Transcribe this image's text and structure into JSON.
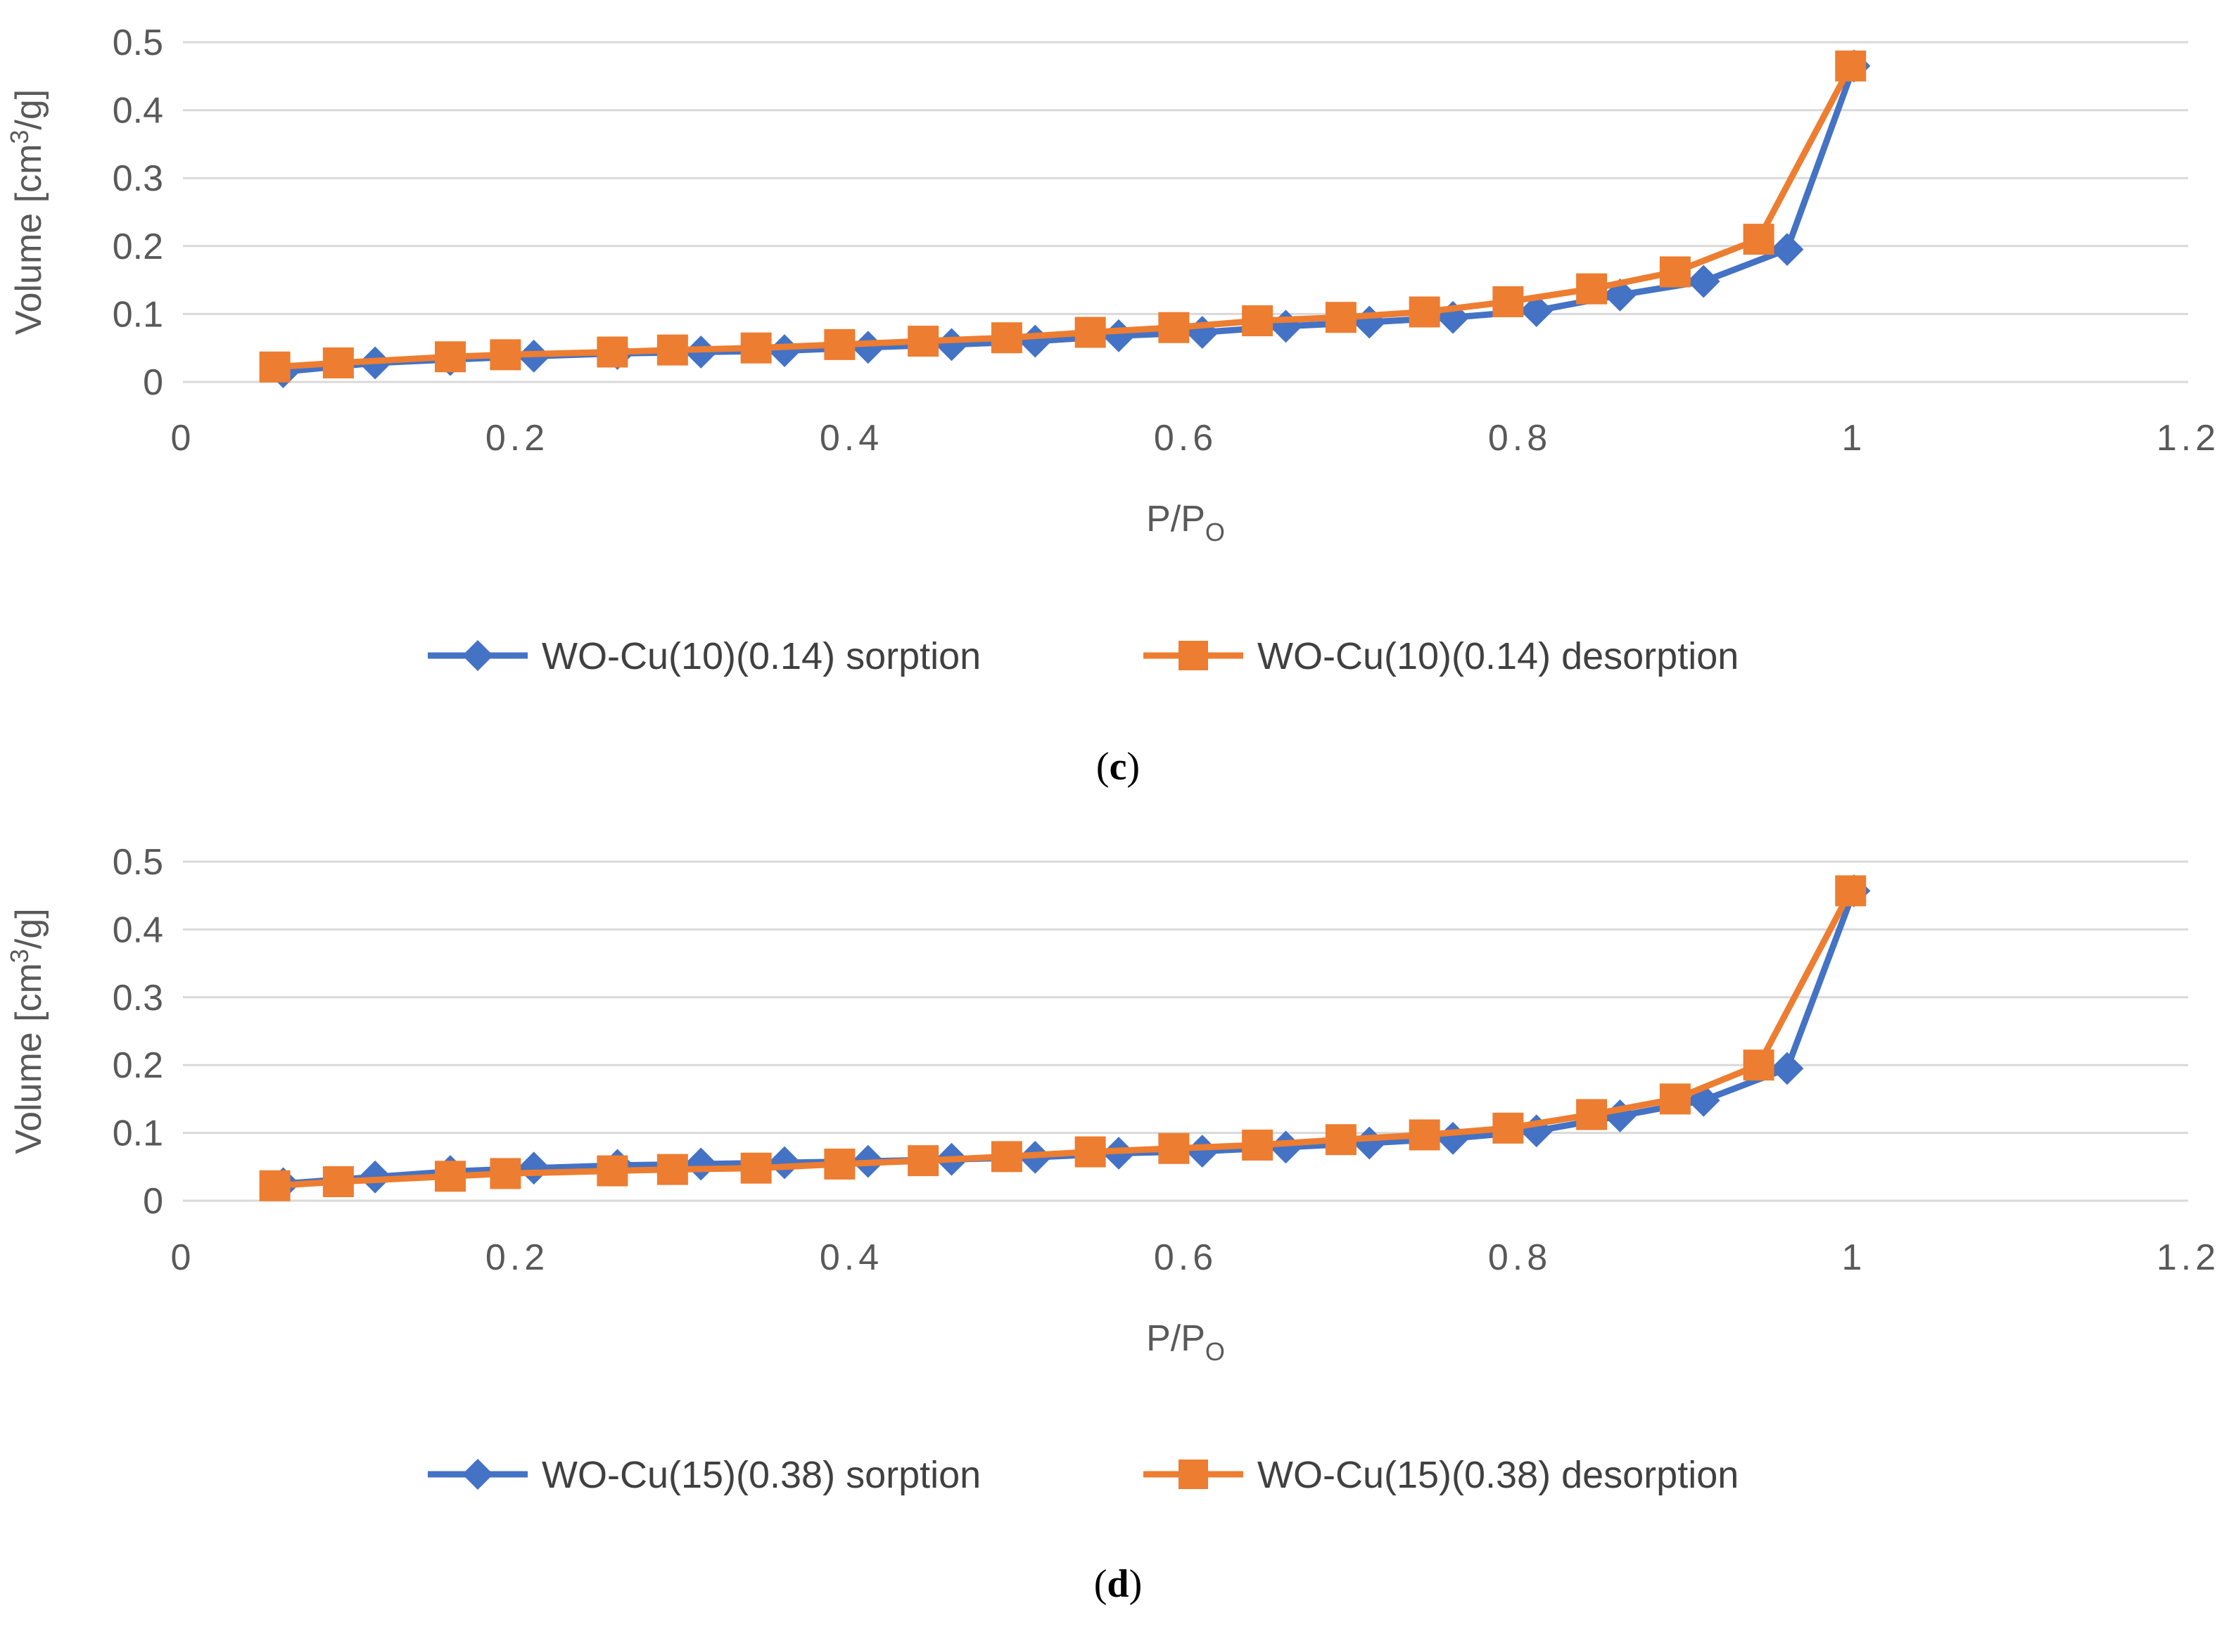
{
  "colors": {
    "sorption": "#4472C4",
    "desorption": "#ED7D31",
    "grid": "#D9D9D9",
    "text": "#595959"
  },
  "chart_data": [
    {
      "type": "line",
      "panel_label": "c",
      "xlabel": "P/P",
      "xlabel_sub": "O",
      "ylabel": "Volume [cm",
      "ylabel_sup": "3",
      "ylabel_end": "/g]",
      "xlim": [
        0,
        1.2
      ],
      "ylim": [
        0,
        0.5
      ],
      "xticks": [
        "0",
        "0.2",
        "0.4",
        "0.6",
        "0.8",
        "1",
        "1.2"
      ],
      "yticks": [
        "0",
        "0.1",
        "0.2",
        "0.3",
        "0.4",
        "0.5"
      ],
      "grid": "horizontal",
      "legend_position": "bottom",
      "series": [
        {
          "name": "WO-Cu(10)(0.14) sorption",
          "marker": "diamond",
          "x": [
            0.06,
            0.115,
            0.16,
            0.21,
            0.26,
            0.31,
            0.36,
            0.41,
            0.46,
            0.51,
            0.56,
            0.61,
            0.66,
            0.71,
            0.76,
            0.81,
            0.86,
            0.91,
            0.96,
            1.0
          ],
          "y": [
            0.015,
            0.028,
            0.033,
            0.038,
            0.042,
            0.044,
            0.046,
            0.051,
            0.055,
            0.06,
            0.068,
            0.073,
            0.082,
            0.088,
            0.095,
            0.105,
            0.128,
            0.148,
            0.195,
            0.465
          ]
        },
        {
          "name": "WO-Cu(10)(0.14) desorption",
          "marker": "square",
          "x": [
            0.055,
            0.093,
            0.16,
            0.193,
            0.257,
            0.293,
            0.343,
            0.393,
            0.443,
            0.493,
            0.543,
            0.593,
            0.643,
            0.693,
            0.743,
            0.793,
            0.843,
            0.893,
            0.943,
            0.998
          ],
          "y": [
            0.022,
            0.028,
            0.037,
            0.04,
            0.044,
            0.047,
            0.05,
            0.055,
            0.06,
            0.065,
            0.073,
            0.08,
            0.09,
            0.095,
            0.103,
            0.118,
            0.137,
            0.162,
            0.21,
            0.465
          ]
        }
      ]
    },
    {
      "type": "line",
      "panel_label": "d",
      "xlabel": "P/P",
      "xlabel_sub": "O",
      "ylabel": "Volume [cm",
      "ylabel_sup": "3",
      "ylabel_end": "/g]",
      "xlim": [
        0,
        1.2
      ],
      "ylim": [
        0,
        0.5
      ],
      "xticks": [
        "0",
        "0.2",
        "0.4",
        "0.6",
        "0.8",
        "1",
        "1.2"
      ],
      "yticks": [
        "0",
        "0.1",
        "0.2",
        "0.3",
        "0.4",
        "0.5"
      ],
      "grid": "horizontal",
      "legend_position": "bottom",
      "series": [
        {
          "name": "WO-Cu(15)(0.38) sorption",
          "marker": "diamond",
          "x": [
            0.06,
            0.115,
            0.16,
            0.21,
            0.26,
            0.31,
            0.36,
            0.41,
            0.46,
            0.51,
            0.56,
            0.61,
            0.66,
            0.71,
            0.76,
            0.81,
            0.86,
            0.91,
            0.96,
            1.0
          ],
          "y": [
            0.025,
            0.035,
            0.043,
            0.048,
            0.052,
            0.054,
            0.056,
            0.058,
            0.061,
            0.064,
            0.07,
            0.073,
            0.079,
            0.085,
            0.092,
            0.103,
            0.125,
            0.148,
            0.195,
            0.457
          ]
        },
        {
          "name": "WO-Cu(15)(0.38) desorption",
          "marker": "square",
          "x": [
            0.055,
            0.093,
            0.16,
            0.193,
            0.257,
            0.293,
            0.343,
            0.393,
            0.443,
            0.493,
            0.543,
            0.593,
            0.643,
            0.693,
            0.743,
            0.793,
            0.843,
            0.893,
            0.943,
            0.998
          ],
          "y": [
            0.022,
            0.028,
            0.036,
            0.04,
            0.044,
            0.046,
            0.048,
            0.054,
            0.059,
            0.065,
            0.072,
            0.077,
            0.082,
            0.09,
            0.097,
            0.107,
            0.127,
            0.15,
            0.2,
            0.457
          ]
        }
      ]
    }
  ]
}
